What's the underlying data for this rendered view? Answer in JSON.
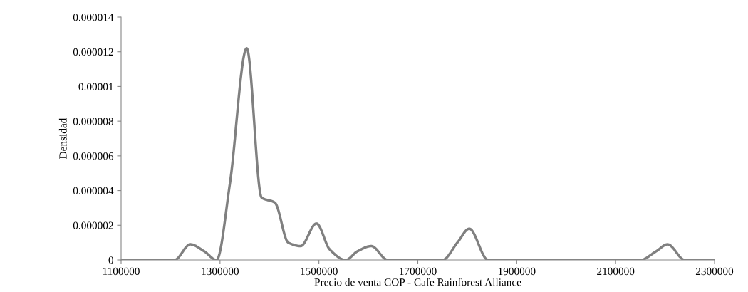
{
  "chart_data": {
    "type": "line",
    "xlabel": "Precio de venta COP - Cafe Rainforest Alliance",
    "ylabel": "Densidad",
    "x": [
      1100000,
      1208000,
      1240000,
      1268000,
      1293000,
      1320000,
      1354000,
      1384000,
      1411000,
      1438000,
      1463000,
      1495000,
      1522000,
      1554000,
      1578000,
      1606000,
      1639000,
      1750000,
      1780000,
      1804000,
      1842000,
      2150000,
      2182000,
      2205000,
      2240000,
      2300000
    ],
    "series": [
      {
        "color": "#808080",
        "values": [
          0,
          0,
          9e-07,
          5e-07,
          0,
          4.4e-06,
          1.22e-05,
          3.6e-06,
          3.3e-06,
          1e-06,
          8e-07,
          2.1e-06,
          6e-07,
          0,
          5e-07,
          8e-07,
          0,
          0,
          1e-06,
          1.8e-06,
          0,
          0,
          5e-07,
          9e-07,
          0,
          0
        ]
      }
    ],
    "xlim": [
      1100000,
      2300000
    ],
    "ylim": [
      0,
      1.4e-05
    ],
    "xticks": [
      1100000,
      1300000,
      1500000,
      1700000,
      1900000,
      2100000,
      2300000
    ],
    "yticks": [
      0,
      {
        "value": 2e-06,
        "label": "0.000002"
      },
      {
        "value": 4e-06,
        "label": "0.000004"
      },
      {
        "value": 6e-06,
        "label": "0.000006"
      },
      {
        "value": 8e-06,
        "label": "0.000008"
      },
      {
        "value": 1e-05,
        "label": "0.00001"
      },
      {
        "value": 1.2e-05,
        "label": "0.000012"
      },
      {
        "value": 1.4e-05,
        "label": "0.000014"
      }
    ],
    "grid": false,
    "legend": false,
    "marker": "none",
    "line_style": "solid"
  }
}
